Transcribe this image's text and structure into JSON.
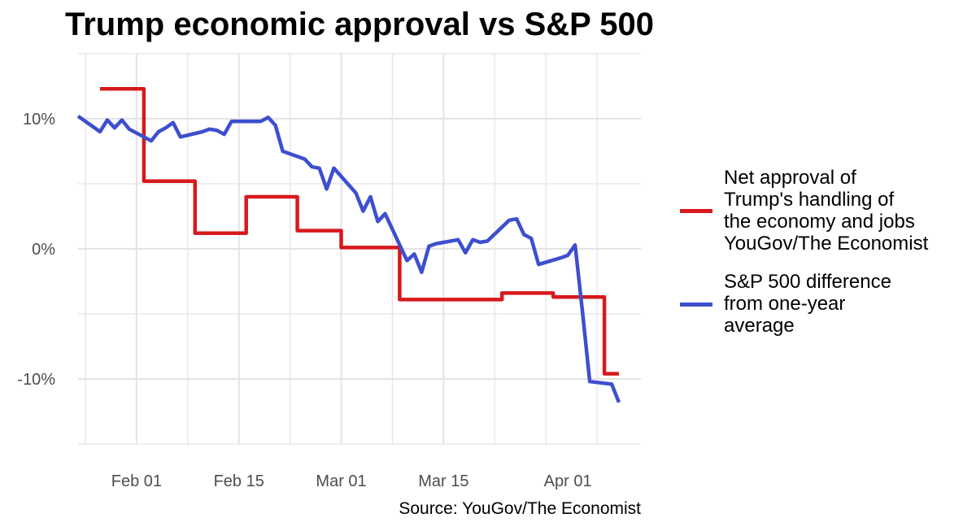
{
  "chart_data": {
    "type": "line",
    "title": "Trump economic approval vs S&P 500",
    "source": "Source: YouGov/The Economist",
    "xlabel": "",
    "ylabel": "",
    "x_axis": {
      "type": "date",
      "range": [
        "2025-01-24",
        "2025-04-11"
      ],
      "tick_values": [
        "2025-02-01",
        "2025-02-15",
        "2025-03-01",
        "2025-03-15",
        "2025-04-01"
      ],
      "tick_labels": [
        "Feb 01",
        "Feb 15",
        "Mar 01",
        "Mar 15",
        "Apr 01"
      ]
    },
    "y_axis": {
      "range": [
        -15,
        15
      ],
      "tick_values": [
        -10,
        0,
        10
      ],
      "tick_labels": [
        "-10%",
        "0%",
        "10%"
      ]
    },
    "grid": true,
    "legend_position": "right",
    "series": [
      {
        "name": "Net approval of\nTrump's handling of\nthe economy and jobs\nYouGov/The Economist",
        "color": "#d7191c",
        "step": true,
        "points": [
          [
            "2025-01-27",
            12.3
          ],
          [
            "2025-02-02",
            12.3
          ],
          [
            "2025-02-02",
            5.2
          ],
          [
            "2025-02-09",
            5.2
          ],
          [
            "2025-02-09",
            1.2
          ],
          [
            "2025-02-16",
            1.2
          ],
          [
            "2025-02-16",
            4.0
          ],
          [
            "2025-02-23",
            4.0
          ],
          [
            "2025-02-23",
            1.4
          ],
          [
            "2025-03-01",
            1.4
          ],
          [
            "2025-03-01",
            0.1
          ],
          [
            "2025-03-09",
            0.1
          ],
          [
            "2025-03-09",
            -3.9
          ],
          [
            "2025-03-23",
            -3.9
          ],
          [
            "2025-03-23",
            -3.4
          ],
          [
            "2025-03-30",
            -3.4
          ],
          [
            "2025-03-30",
            -3.7
          ],
          [
            "2025-04-06",
            -3.7
          ],
          [
            "2025-04-06",
            -9.6
          ],
          [
            "2025-04-08",
            -9.6
          ]
        ]
      },
      {
        "name": "S&P 500 difference\nfrom one-year\naverage",
        "color": "#3d4fcf",
        "step": false,
        "points": [
          [
            "2025-01-24",
            10.2
          ],
          [
            "2025-01-27",
            9.0
          ],
          [
            "2025-01-28",
            9.9
          ],
          [
            "2025-01-29",
            9.3
          ],
          [
            "2025-01-30",
            9.9
          ],
          [
            "2025-01-31",
            9.2
          ],
          [
            "2025-02-03",
            8.3
          ],
          [
            "2025-02-04",
            9.0
          ],
          [
            "2025-02-05",
            9.3
          ],
          [
            "2025-02-06",
            9.7
          ],
          [
            "2025-02-07",
            8.6
          ],
          [
            "2025-02-10",
            9.0
          ],
          [
            "2025-02-11",
            9.2
          ],
          [
            "2025-02-12",
            9.1
          ],
          [
            "2025-02-13",
            8.8
          ],
          [
            "2025-02-14",
            9.8
          ],
          [
            "2025-02-18",
            9.8
          ],
          [
            "2025-02-19",
            10.1
          ],
          [
            "2025-02-20",
            9.5
          ],
          [
            "2025-02-21",
            7.5
          ],
          [
            "2025-02-24",
            6.9
          ],
          [
            "2025-02-25",
            6.3
          ],
          [
            "2025-02-26",
            6.2
          ],
          [
            "2025-02-27",
            4.6
          ],
          [
            "2025-02-28",
            6.2
          ],
          [
            "2025-03-03",
            4.3
          ],
          [
            "2025-03-04",
            2.9
          ],
          [
            "2025-03-05",
            4.0
          ],
          [
            "2025-03-06",
            2.1
          ],
          [
            "2025-03-07",
            2.7
          ],
          [
            "2025-03-10",
            -0.9
          ],
          [
            "2025-03-11",
            -0.4
          ],
          [
            "2025-03-12",
            -1.8
          ],
          [
            "2025-03-13",
            0.2
          ],
          [
            "2025-03-14",
            0.4
          ],
          [
            "2025-03-17",
            0.7
          ],
          [
            "2025-03-18",
            -0.3
          ],
          [
            "2025-03-19",
            0.7
          ],
          [
            "2025-03-20",
            0.5
          ],
          [
            "2025-03-21",
            0.6
          ],
          [
            "2025-03-24",
            2.2
          ],
          [
            "2025-03-25",
            2.3
          ],
          [
            "2025-03-26",
            1.1
          ],
          [
            "2025-03-27",
            0.8
          ],
          [
            "2025-03-28",
            -1.2
          ],
          [
            "2025-03-31",
            -0.7
          ],
          [
            "2025-04-01",
            -0.5
          ],
          [
            "2025-04-02",
            0.3
          ],
          [
            "2025-04-03",
            -4.8
          ],
          [
            "2025-04-04",
            -10.2
          ],
          [
            "2025-04-07",
            -10.4
          ],
          [
            "2025-04-08",
            -11.8
          ]
        ]
      }
    ]
  }
}
